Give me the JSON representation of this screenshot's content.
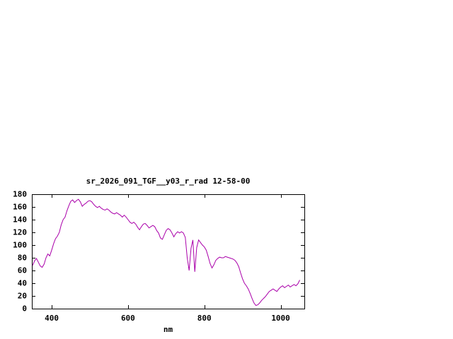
{
  "window": {
    "background_color": "#ffffff",
    "text_color": "#000000"
  },
  "chart_data": {
    "type": "line",
    "title": "sr_2026_091_TGF__y03_r_rad 12-58-00",
    "xlabel": "nm",
    "ylabel": "",
    "xlim": [
      348,
      1062
    ],
    "ylim": [
      0,
      180
    ],
    "xticks": [
      400,
      600,
      800,
      1000
    ],
    "yticks": [
      0,
      20,
      40,
      60,
      80,
      100,
      120,
      140,
      160,
      180
    ],
    "grid": false,
    "legend_position": "none",
    "line_color": "#aa00aa",
    "axis_color": "#000000",
    "series": [
      {
        "name": "sr_2026_091_TGF__y03_r_rad",
        "x_start_nm": 350,
        "x_step_nm": 5,
        "values": [
          68,
          75,
          79,
          73,
          67,
          65,
          70,
          80,
          86,
          83,
          92,
          102,
          110,
          114,
          120,
          132,
          140,
          144,
          154,
          162,
          169,
          171,
          167,
          170,
          172,
          168,
          161,
          164,
          166,
          169,
          170,
          168,
          164,
          161,
          159,
          161,
          158,
          156,
          155,
          157,
          155,
          152,
          150,
          149,
          151,
          149,
          147,
          144,
          147,
          144,
          140,
          136,
          134,
          136,
          133,
          128,
          124,
          129,
          133,
          134,
          131,
          127,
          129,
          131,
          129,
          123,
          119,
          111,
          109,
          116,
          123,
          126,
          124,
          119,
          113,
          118,
          121,
          119,
          121,
          119,
          112,
          80,
          60,
          95,
          108,
          58,
          96,
          108,
          104,
          100,
          97,
          92,
          82,
          71,
          64,
          69,
          76,
          79,
          81,
          80,
          80,
          82,
          81,
          80,
          79,
          78,
          76,
          72,
          66,
          56,
          47,
          40,
          36,
          31,
          24,
          16,
          9,
          5,
          6,
          9,
          13,
          16,
          19,
          23,
          27,
          29,
          31,
          29,
          27,
          31,
          34,
          36,
          33,
          35,
          37,
          34,
          36,
          38,
          36,
          39,
          45
        ]
      }
    ]
  }
}
